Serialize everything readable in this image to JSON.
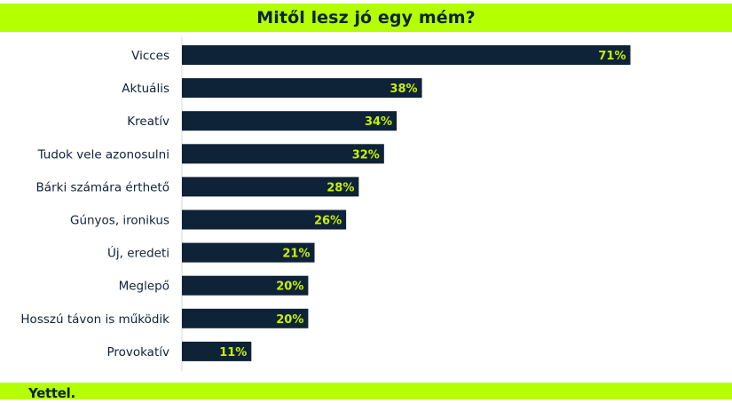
{
  "chart_data": {
    "type": "bar",
    "orientation": "horizontal",
    "title": "Mitől lesz jó egy mém?",
    "categories": [
      "Vicces",
      "Aktuális",
      "Kreatív",
      "Tudok vele azonosulni",
      "Bárki számára érthető",
      "Gúnyos, ironikus",
      "Új, eredeti",
      "Meglepő",
      "Hosszú távon is működik",
      "Provokatív"
    ],
    "values": [
      71,
      38,
      34,
      32,
      28,
      26,
      21,
      20,
      20,
      11
    ],
    "value_labels": [
      "71%",
      "38%",
      "34%",
      "32%",
      "28%",
      "26%",
      "21%",
      "20%",
      "20%",
      "11%"
    ],
    "unit": "%",
    "xlim": [
      0,
      100
    ],
    "grid": false,
    "legend": "none"
  },
  "footer": {
    "brand": "Yettel."
  },
  "colors": {
    "accent": "#b4ff00",
    "bar": "#0e2238",
    "bar_label": "#c8f000",
    "category_text": "#0e2238",
    "axis_line": "#d9d9d9"
  }
}
